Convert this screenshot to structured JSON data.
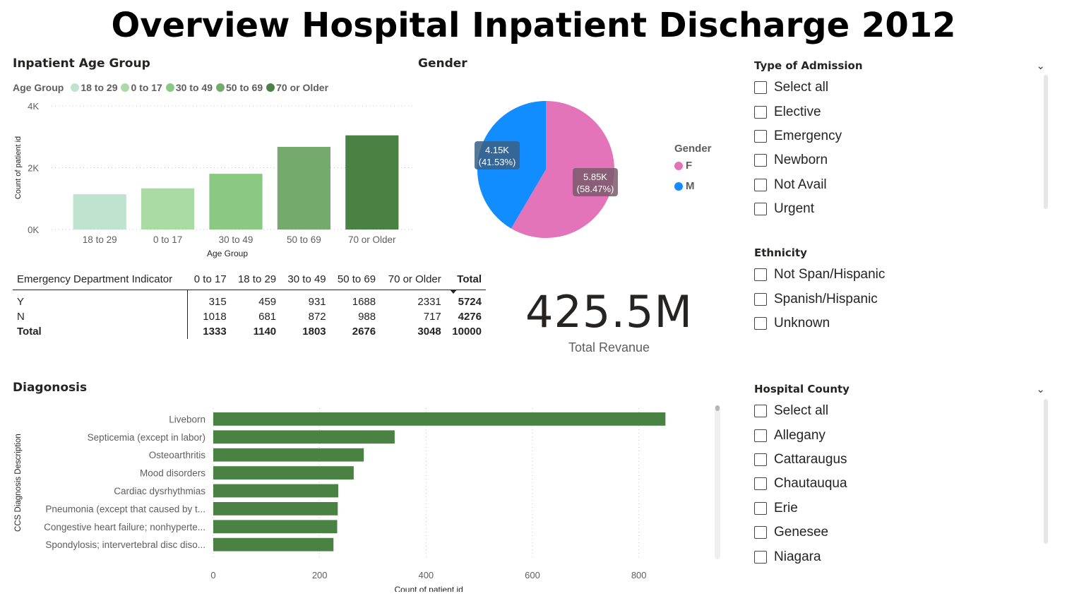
{
  "title": "Overview Hospital Inpatient Discharge 2012",
  "age_chart": {
    "title": "Inpatient Age Group",
    "legend_title": "Age Group",
    "legend": [
      {
        "label": "18 to 29",
        "color": "#bfe3cf"
      },
      {
        "label": "0 to 17",
        "color": "#abdba4"
      },
      {
        "label": "30 to 49",
        "color": "#8ac884"
      },
      {
        "label": "50 to 69",
        "color": "#74ab6c"
      },
      {
        "label": "70 or Older",
        "color": "#4a8244"
      }
    ]
  },
  "gender_chart": {
    "title": "Gender",
    "legend_title": "Gender",
    "legend": [
      {
        "label": "F",
        "color": "#e374b9"
      },
      {
        "label": "M",
        "color": "#118dff"
      }
    ],
    "labels": [
      {
        "value": "5.85K",
        "pct": "(58.47%)"
      },
      {
        "value": "4.15K",
        "pct": "(41.53%)"
      }
    ]
  },
  "matrix": {
    "headers": [
      "Emergency Department Indicator",
      "0 to 17",
      "18 to 29",
      "30 to 49",
      "50 to 69",
      "70 or Older",
      "Total"
    ],
    "rows": [
      [
        "Y",
        "315",
        "459",
        "931",
        "1688",
        "2331",
        "5724"
      ],
      [
        "N",
        "1018",
        "681",
        "872",
        "988",
        "717",
        "4276"
      ]
    ],
    "total_row": [
      "Total",
      "1333",
      "1140",
      "1803",
      "2676",
      "3048",
      "10000"
    ]
  },
  "kpi": {
    "value": "425.5M",
    "label": "Total Revanue"
  },
  "diagnosis_chart": {
    "title": "Diagonosis"
  },
  "slicers": {
    "admission": {
      "title": "Type of Admission",
      "items": [
        "Select all",
        "Elective",
        "Emergency",
        "Newborn",
        "Not Avail",
        "Urgent"
      ]
    },
    "ethnicity": {
      "title": "Ethnicity",
      "items": [
        "Not Span/Hispanic",
        "Spanish/Hispanic",
        "Unknown"
      ]
    },
    "county": {
      "title": "Hospital County",
      "items": [
        "Select all",
        "Allegany",
        "Cattaraugus",
        "Chautauqua",
        "Erie",
        "Genesee",
        "Niagara"
      ]
    }
  },
  "chart_data": [
    {
      "type": "bar",
      "title": "Inpatient Age Group",
      "xlabel": "Age Group",
      "ylabel": "Count of patient id",
      "categories": [
        "18 to 29",
        "0 to 17",
        "30 to 49",
        "50 to 69",
        "70 or Older"
      ],
      "values": [
        1140,
        1333,
        1803,
        2676,
        3048
      ],
      "colors": [
        "#bfe3cf",
        "#abdba4",
        "#8ac884",
        "#74ab6c",
        "#4a8244"
      ],
      "ylim": [
        0,
        4000
      ],
      "yticks": [
        "0K",
        "2K",
        "4K"
      ],
      "legend_position": "top-left",
      "grid": true
    },
    {
      "type": "pie",
      "title": "Gender",
      "categories": [
        "F",
        "M"
      ],
      "values": [
        5847,
        4153
      ],
      "colors": [
        "#e374b9",
        "#118dff"
      ],
      "legend_position": "right"
    },
    {
      "type": "bar",
      "orientation": "horizontal",
      "title": "Diagonosis",
      "xlabel": "Count of patient id",
      "ylabel": "CCS Diagnosis Description",
      "categories": [
        "Liveborn",
        "Septicemia (except in labor)",
        "Osteoarthritis",
        "Mood disorders",
        "Cardiac dysrhythmias",
        "Pneumonia (except that caused by t...",
        "Congestive heart failure; nonhyperte...",
        "Spondylosis; intervertebral disc diso..."
      ],
      "values": [
        850,
        341,
        283,
        264,
        235,
        234,
        233,
        226
      ],
      "xlim": [
        0,
        900
      ],
      "xticks": [
        0,
        200,
        400,
        600,
        800
      ],
      "color": "#4a8244",
      "grid": true
    }
  ]
}
